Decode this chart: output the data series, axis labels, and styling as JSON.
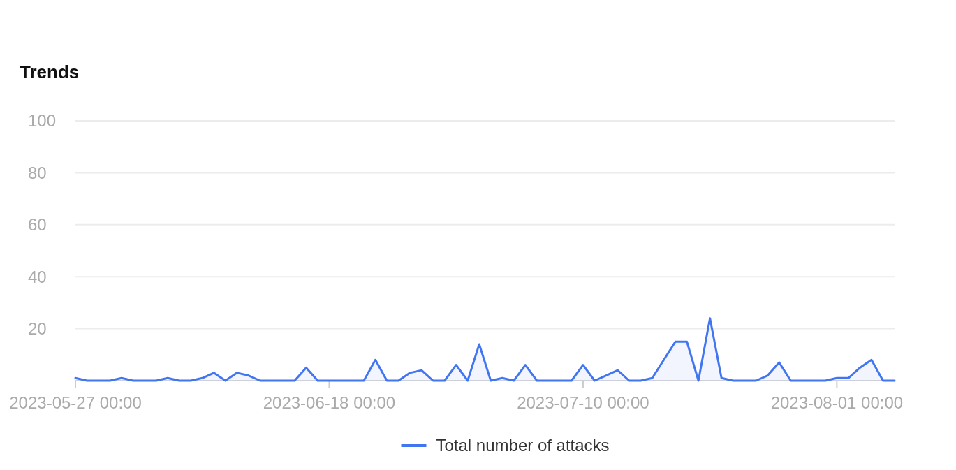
{
  "chart_data": {
    "type": "area",
    "title": "Trends",
    "x": [
      "2023-05-27",
      "2023-05-28",
      "2023-05-29",
      "2023-05-30",
      "2023-05-31",
      "2023-06-01",
      "2023-06-02",
      "2023-06-03",
      "2023-06-04",
      "2023-06-05",
      "2023-06-06",
      "2023-06-07",
      "2023-06-08",
      "2023-06-09",
      "2023-06-10",
      "2023-06-11",
      "2023-06-12",
      "2023-06-13",
      "2023-06-14",
      "2023-06-15",
      "2023-06-16",
      "2023-06-17",
      "2023-06-18",
      "2023-06-19",
      "2023-06-20",
      "2023-06-21",
      "2023-06-22",
      "2023-06-23",
      "2023-06-24",
      "2023-06-25",
      "2023-06-26",
      "2023-06-27",
      "2023-06-28",
      "2023-06-29",
      "2023-06-30",
      "2023-07-01",
      "2023-07-02",
      "2023-07-03",
      "2023-07-04",
      "2023-07-05",
      "2023-07-06",
      "2023-07-07",
      "2023-07-08",
      "2023-07-09",
      "2023-07-10",
      "2023-07-11",
      "2023-07-12",
      "2023-07-13",
      "2023-07-14",
      "2023-07-15",
      "2023-07-16",
      "2023-07-17",
      "2023-07-18",
      "2023-07-19",
      "2023-07-20",
      "2023-07-21",
      "2023-07-22",
      "2023-07-23",
      "2023-07-24",
      "2023-07-25",
      "2023-07-26",
      "2023-07-27",
      "2023-07-28",
      "2023-07-29",
      "2023-07-30",
      "2023-07-31",
      "2023-08-01",
      "2023-08-02",
      "2023-08-03",
      "2023-08-04",
      "2023-08-05",
      "2023-08-06"
    ],
    "series": [
      {
        "name": "Total number of attacks",
        "color": "#4276f0",
        "values": [
          1,
          0,
          0,
          0,
          1,
          0,
          0,
          0,
          1,
          0,
          0,
          1,
          3,
          0,
          3,
          2,
          0,
          0,
          0,
          0,
          5,
          0,
          0,
          0,
          0,
          0,
          8,
          0,
          0,
          3,
          4,
          0,
          0,
          6,
          0,
          14,
          0,
          1,
          0,
          6,
          0,
          0,
          0,
          0,
          6,
          0,
          2,
          4,
          0,
          0,
          1,
          8,
          15,
          15,
          0,
          24,
          1,
          0,
          0,
          0,
          2,
          7,
          0,
          0,
          0,
          0,
          1,
          1,
          5,
          8,
          0,
          0
        ]
      }
    ],
    "xlim": [
      "2023-05-27",
      "2023-08-06"
    ],
    "xticks": [
      {
        "value": "2023-05-27",
        "label": "2023-05-27 00:00"
      },
      {
        "value": "2023-06-18",
        "label": "2023-06-18 00:00"
      },
      {
        "value": "2023-07-10",
        "label": "2023-07-10 00:00"
      },
      {
        "value": "2023-08-01",
        "label": "2023-08-01 00:00"
      }
    ],
    "ylim": [
      0,
      100
    ],
    "yticks": [
      {
        "value": 0,
        "label": null
      },
      20,
      40,
      60,
      80,
      100
    ],
    "grid": "y",
    "legend": "bottom"
  }
}
